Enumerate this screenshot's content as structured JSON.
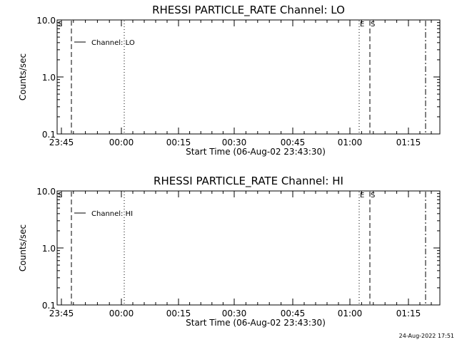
{
  "chart_data": [
    {
      "type": "line",
      "title": "RHESSI PARTICLE_RATE Channel: LO",
      "xlabel": "Start Time (06-Aug-02 23:43:30)",
      "ylabel": "Counts/sec",
      "yscale": "log",
      "ylim": [
        0.1,
        10.0
      ],
      "xlim_minutes": [
        0,
        98
      ],
      "x_tick_labels": [
        "23:45",
        "00:00",
        "00:15",
        "00:30",
        "00:45",
        "01:00",
        "01:15"
      ],
      "y_tick_labels": [
        "10.0",
        "1.0",
        "0.1"
      ],
      "legend": "Channel: LO",
      "series": [],
      "annotations": [
        "S",
        "E",
        "S"
      ]
    },
    {
      "type": "line",
      "title": "RHESSI PARTICLE_RATE Channel: HI",
      "xlabel": "Start Time (06-Aug-02 23:43:30)",
      "ylabel": "Counts/sec",
      "yscale": "log",
      "ylim": [
        0.1,
        10.0
      ],
      "xlim_minutes": [
        0,
        98
      ],
      "x_tick_labels": [
        "23:45",
        "00:00",
        "00:15",
        "00:30",
        "00:45",
        "01:00",
        "01:15"
      ],
      "y_tick_labels": [
        "10.0",
        "1.0",
        "0.1"
      ],
      "legend": "Channel: HI",
      "series": [],
      "annotations": [
        "S",
        "E",
        "S"
      ]
    }
  ],
  "footer": {
    "timestamp": "24-Aug-2022 17:51"
  }
}
